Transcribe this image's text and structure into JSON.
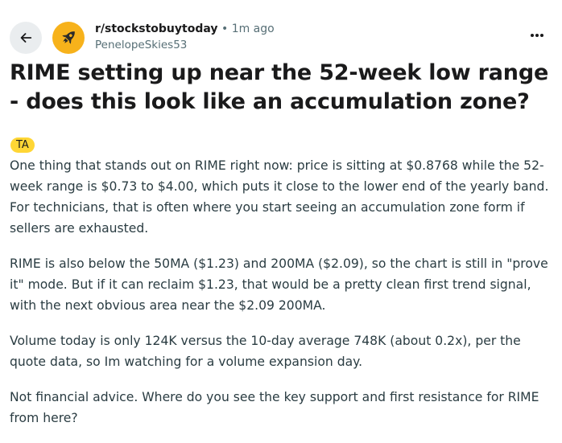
{
  "post": {
    "subreddit": "r/stockstobuytoday",
    "separator": "•",
    "time_ago": "1m ago",
    "author": "PenelopeSkies53",
    "title": "RIME setting up near the 52-week low range - does this look like an accumulation zone?",
    "flair": "TA",
    "paragraphs": [
      "One thing that stands out on RIME right now: price is sitting at $0.8768 while the 52-week range is $0.73 to $4.00, which puts it close to the lower end of the yearly band. For technicians, that is often where you start seeing an accumulation zone form if sellers are exhausted.",
      "RIME is also below the 50MA ($1.23) and 200MA ($2.09), so the chart is still in \"prove it\" mode. But if it can reclaim $1.23, that would be a pretty clean first trend signal, with the next obvious area near the $2.09 200MA.",
      "Volume today is only 124K versus the 10-day average 748K (about 0.2x), per the quote data, so Im watching for a volume expansion day.",
      "Not financial advice. Where do you see the key support and first resistance for RIME from here?"
    ]
  },
  "icons": {
    "back": "arrow-left-icon",
    "avatar": "rocket-icon",
    "more": "more-horizontal-icon"
  },
  "colors": {
    "avatar_bg": "#f7b21b",
    "flair_bg": "#ffd635",
    "back_button_bg": "#eaedef",
    "meta_text": "#576f76"
  }
}
